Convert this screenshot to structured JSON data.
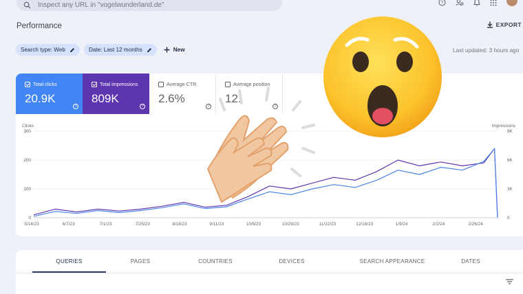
{
  "search": {
    "placeholder": "Inspect any URL in \"vogelwunderland.de\""
  },
  "header": {
    "title": "Performance",
    "export_label": "EXPORT",
    "icons": [
      "search-icon",
      "help-icon",
      "manage-users-icon",
      "notifications-icon",
      "apps-icon",
      "avatar"
    ]
  },
  "filters": {
    "search_type": "Search type: Web",
    "date": "Date: Last 12 months",
    "new_label": "New",
    "last_updated": "Last updated: 3 hours ago"
  },
  "metrics": {
    "clicks": {
      "label": "Total clicks",
      "value": "20.9K",
      "checked": true,
      "color": "#4285f4"
    },
    "impressions": {
      "label": "Total impressions",
      "value": "809K",
      "checked": true,
      "color": "#5e35b1"
    },
    "ctr": {
      "label": "Average CTR",
      "value": "2.6%",
      "checked": false
    },
    "position": {
      "label": "Average position",
      "value": "12.",
      "checked": false
    }
  },
  "chart_data": {
    "type": "line",
    "ylabel_left": "Clicks",
    "ylabel_right": "Impressions",
    "ylim_left": [
      0,
      300
    ],
    "ylim_right": [
      0,
      9000
    ],
    "yticks_left": [
      "300",
      "200",
      "100",
      "0"
    ],
    "yticks_right": [
      "9K",
      "6K",
      "3K",
      "0"
    ],
    "x_ticks": [
      "5/14/23",
      "6/7/23",
      "7/1/23",
      "7/25/23",
      "8/18/23",
      "9/11/23",
      "10/5/23",
      "10/29/23",
      "11/22/23",
      "12/16/23",
      "1/9/24",
      "2/2/24",
      "2/26/24"
    ],
    "x_range": [
      "2023-05-14",
      "2024-03-12"
    ],
    "series": [
      {
        "name": "Total clicks",
        "color": "#4a83e8",
        "x": [
          "2023-05-14",
          "2023-05-28",
          "2023-06-11",
          "2023-06-25",
          "2023-07-09",
          "2023-07-23",
          "2023-08-06",
          "2023-08-20",
          "2023-09-03",
          "2023-09-17",
          "2023-10-01",
          "2023-10-15",
          "2023-10-29",
          "2023-11-12",
          "2023-11-26",
          "2023-12-10",
          "2023-12-24",
          "2024-01-07",
          "2024-01-21",
          "2024-02-04",
          "2024-02-18",
          "2024-03-03",
          "2024-03-10",
          "2024-03-12"
        ],
        "values": [
          5,
          22,
          15,
          25,
          18,
          25,
          35,
          48,
          32,
          38,
          65,
          90,
          80,
          100,
          115,
          105,
          130,
          165,
          150,
          175,
          165,
          195,
          240,
          0
        ]
      },
      {
        "name": "Total impressions",
        "color": "#5e35b1",
        "x": [
          "2023-05-14",
          "2023-05-28",
          "2023-06-11",
          "2023-06-25",
          "2023-07-09",
          "2023-07-23",
          "2023-08-06",
          "2023-08-20",
          "2023-09-03",
          "2023-09-17",
          "2023-10-01",
          "2023-10-15",
          "2023-10-29",
          "2023-11-12",
          "2023-11-26",
          "2023-12-10",
          "2023-12-24",
          "2024-01-07",
          "2024-01-21",
          "2024-02-04",
          "2024-02-18",
          "2024-03-03",
          "2024-03-10",
          "2024-03-12"
        ],
        "values": [
          300,
          900,
          600,
          900,
          700,
          900,
          1200,
          1600,
          1100,
          1300,
          2200,
          3300,
          3000,
          3600,
          4200,
          3900,
          4800,
          6000,
          5400,
          5800,
          5400,
          5700,
          7200,
          0
        ]
      }
    ]
  },
  "tabs": [
    "QUERIES",
    "PAGES",
    "COUNTRIES",
    "DEVICES",
    "SEARCH APPEARANCE",
    "DATES"
  ]
}
